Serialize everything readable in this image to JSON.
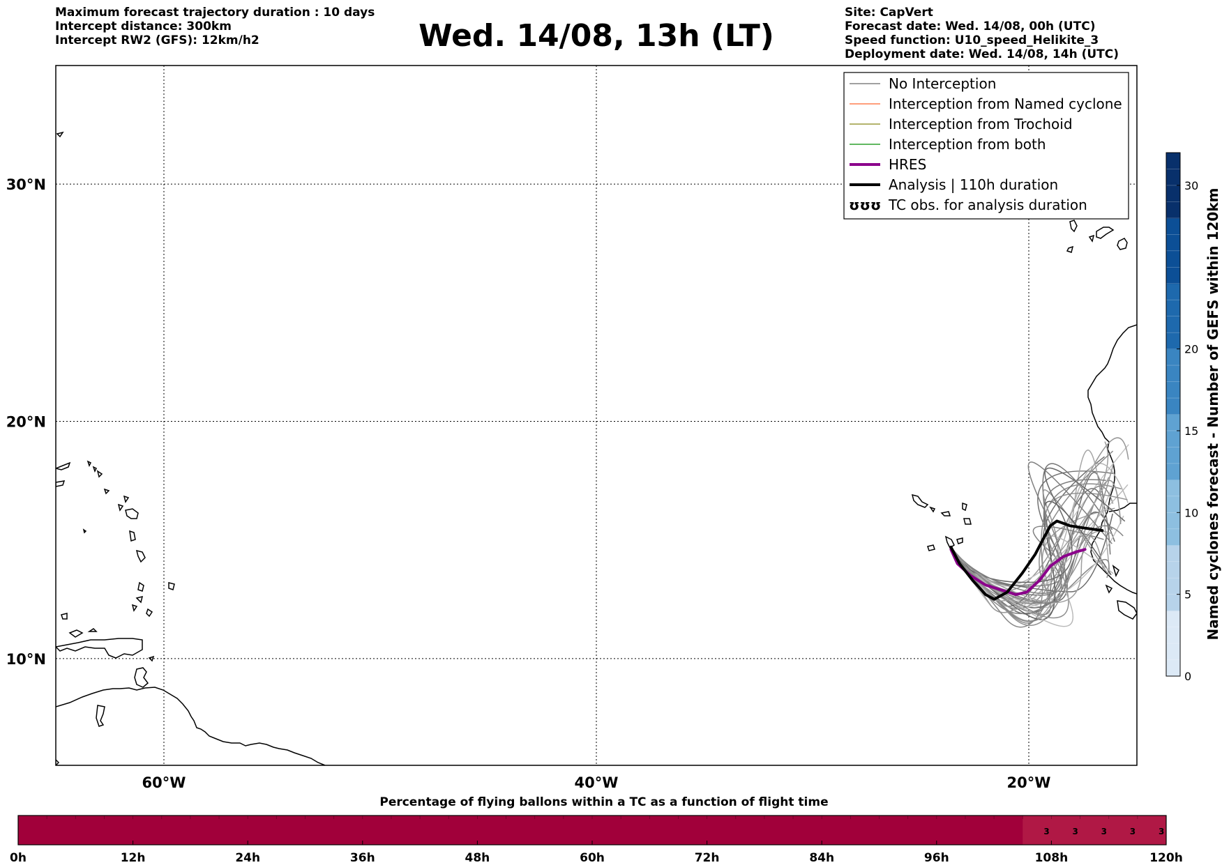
{
  "header": {
    "left_lines": [
      "Maximum forecast trajectory duration : 10 days",
      "Intercept distance: 300km",
      "Intercept RW2 (GFS):  12km/h2"
    ],
    "title": "Wed. 14/08, 13h (LT)",
    "right_lines": [
      "Site: CapVert",
      "Forecast date: Wed. 14/08, 00h (UTC)",
      "Speed function: U10_speed_Helikite_3",
      "Deployment date: Wed. 14/08, 14h (UTC)"
    ]
  },
  "map": {
    "lon_range": [
      -65,
      -15
    ],
    "lat_range": [
      5.5,
      35
    ],
    "lon_ticks": [
      {
        "value": -60,
        "label": "60°W"
      },
      {
        "value": -40,
        "label": "40°W"
      },
      {
        "value": -20,
        "label": "20°W"
      }
    ],
    "lat_ticks": [
      {
        "value": 30,
        "label": "30°N"
      },
      {
        "value": 20,
        "label": "20°N"
      },
      {
        "value": 10,
        "label": "10°N"
      }
    ]
  },
  "legend": {
    "items": [
      {
        "label": "No Interception",
        "color": "#808080",
        "style": "line"
      },
      {
        "label": "Interception from Named cyclone",
        "color": "#ff7f50",
        "style": "line"
      },
      {
        "label": "Interception from Trochoid",
        "color": "#9a9a3c",
        "style": "line"
      },
      {
        "label": "Interception from both",
        "color": "#2ca02c",
        "style": "line"
      },
      {
        "label": "HRES",
        "color": "#8b008b",
        "style": "thick"
      },
      {
        "label": "Analysis | 110h duration",
        "color": "#000000",
        "style": "thick"
      },
      {
        "label": "TC obs. for analysis duration",
        "color": "#000000",
        "style": "symbol",
        "symbol": "ʊʊʊ"
      }
    ]
  },
  "colorbar": {
    "title": "Named cyclones forecast - Number of GEFS within 120km",
    "range": [
      0,
      32
    ],
    "ticks": [
      0,
      5,
      10,
      15,
      20,
      30
    ],
    "colors_low_to_high": [
      "#dce9f6",
      "#b7d3ea",
      "#8dbfe0",
      "#5fa2d2",
      "#3a85c1",
      "#1e69ad",
      "#0c4f96",
      "#08306b"
    ]
  },
  "timeline": {
    "title": "Percentage of flying ballons within a TC as a function of flight time",
    "ticks": [
      "0h",
      "12h",
      "24h",
      "36h",
      "48h",
      "60h",
      "72h",
      "84h",
      "96h",
      "108h",
      "120h"
    ],
    "hours": 120,
    "base_color": "#a1003a",
    "highlight_color": "#b01845",
    "highlight_start_hour": 105,
    "cells": [
      {
        "hour": 107.5,
        "value": "3"
      },
      {
        "hour": 110.5,
        "value": "3"
      },
      {
        "hour": 113.5,
        "value": "3"
      },
      {
        "hour": 116.5,
        "value": "3"
      },
      {
        "hour": 119.5,
        "value": "3"
      }
    ]
  },
  "chart_data": {
    "type": "line",
    "title": "Wed. 14/08, 13h (LT)",
    "xlabel": "",
    "ylabel": "",
    "xlim": [
      -65,
      -15
    ],
    "ylim": [
      5.5,
      35
    ],
    "grid": true,
    "legend_position": "top-right",
    "series": [
      {
        "name": "HRES",
        "color": "#8b008b",
        "points": [
          [
            -23.6,
            14.6
          ],
          [
            -23.3,
            14.0
          ],
          [
            -22.7,
            13.5
          ],
          [
            -22.0,
            13.1
          ],
          [
            -21.3,
            12.9
          ],
          [
            -20.6,
            12.7
          ],
          [
            -20.1,
            12.8
          ],
          [
            -19.5,
            13.3
          ],
          [
            -19.0,
            13.9
          ],
          [
            -18.4,
            14.3
          ],
          [
            -17.8,
            14.5
          ],
          [
            -17.4,
            14.6
          ]
        ]
      },
      {
        "name": "Analysis | 110h duration",
        "color": "#000000",
        "points": [
          [
            -23.6,
            14.7
          ],
          [
            -23.2,
            14.0
          ],
          [
            -22.6,
            13.3
          ],
          [
            -22.0,
            12.7
          ],
          [
            -21.6,
            12.5
          ],
          [
            -21.0,
            12.8
          ],
          [
            -20.3,
            13.6
          ],
          [
            -19.7,
            14.4
          ],
          [
            -19.3,
            15.1
          ],
          [
            -19.0,
            15.6
          ],
          [
            -18.7,
            15.8
          ],
          [
            -18.1,
            15.6
          ],
          [
            -17.4,
            15.5
          ],
          [
            -16.6,
            15.4
          ]
        ]
      }
    ]
  }
}
